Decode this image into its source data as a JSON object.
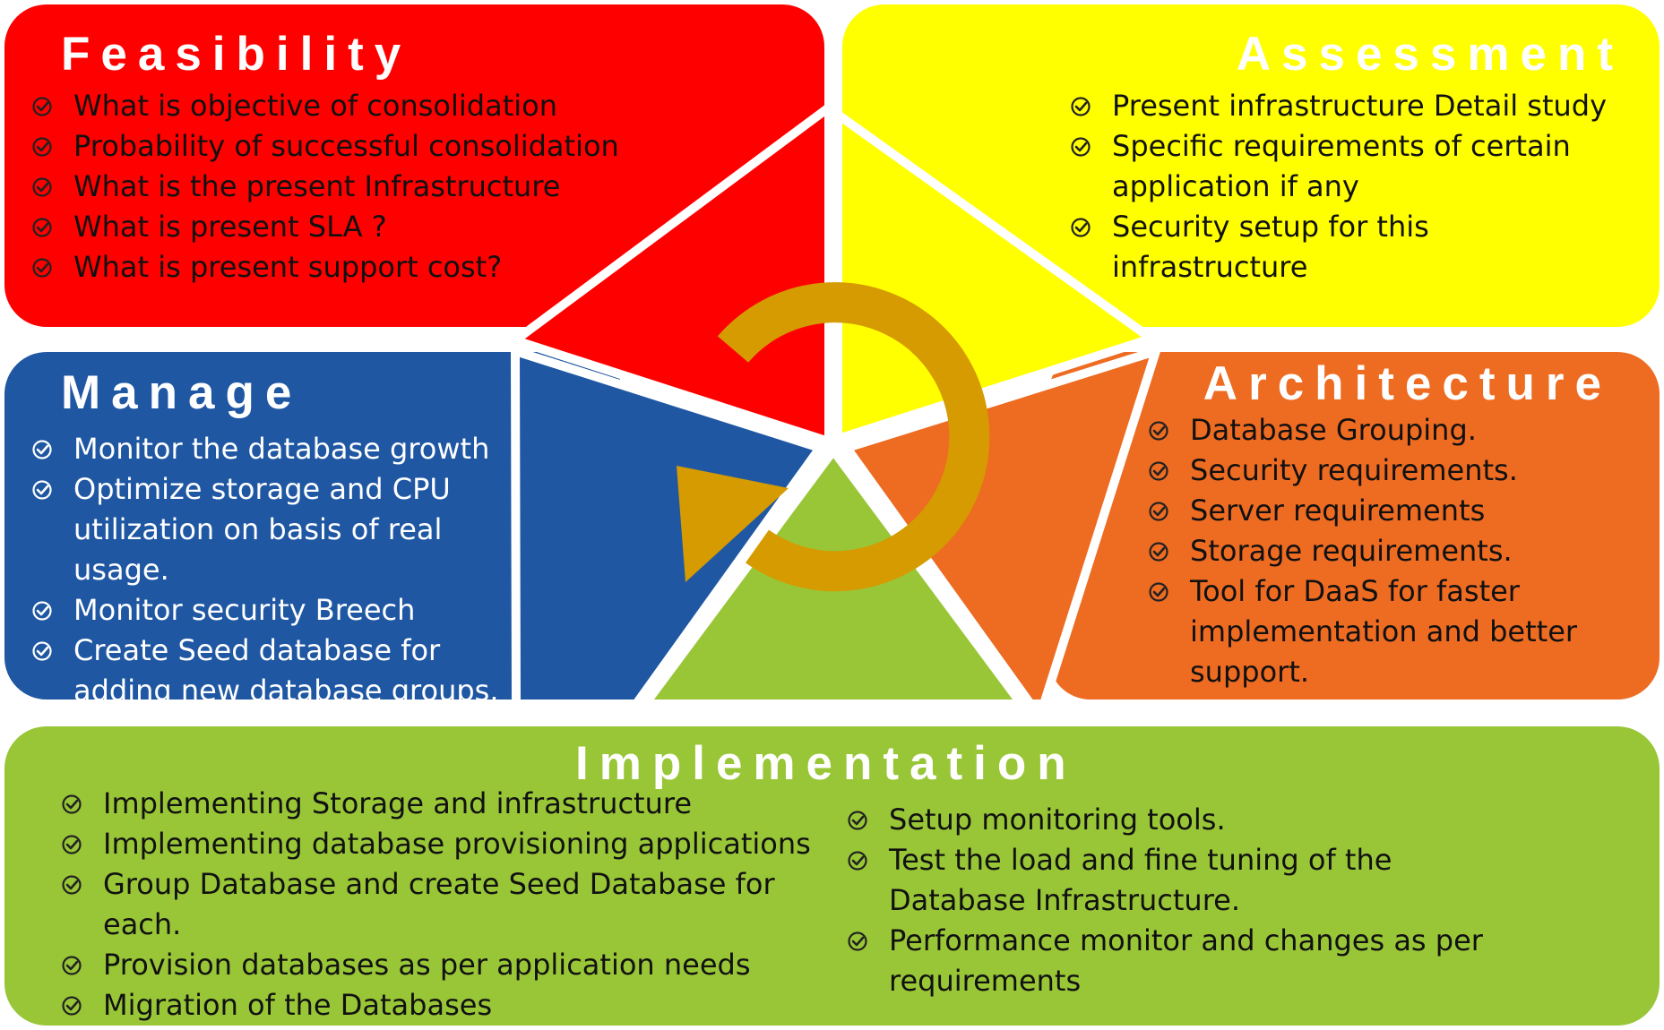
{
  "colors": {
    "feasibility": "#ff0000",
    "assessment": "#ffff00",
    "architecture": "#ee6b22",
    "manage": "#1f57a3",
    "implementation": "#99c637",
    "cycle_arrow": "#d59b00",
    "dividers": "#ffffff"
  },
  "icons": {
    "bullet": "check-circle-icon",
    "center": "circular-arrow-icon"
  },
  "feasibility": {
    "title": "Feasibility",
    "items": [
      "What is objective of consolidation",
      "Probability of successful consolidation",
      "What is the present Infrastructure",
      "What is present SLA ?",
      "What is present support cost?"
    ]
  },
  "assessment": {
    "title": "Assessment",
    "items": [
      "Present infrastructure Detail study",
      "Specific requirements of certain application if any",
      "Security setup for this infrastructure"
    ]
  },
  "manage": {
    "title": "Manage",
    "items": [
      "Monitor the database growth",
      "Optimize storage and CPU utilization on basis of real usage.",
      "Monitor security Breech",
      "Create Seed database for adding new database groups."
    ]
  },
  "architecture": {
    "title": "Architecture",
    "items": [
      "Database Grouping.",
      "Security requirements.",
      "Server requirements",
      "Storage requirements.",
      "Tool for DaaS for faster implementation and better support."
    ]
  },
  "implementation": {
    "title": "Implementation",
    "left_items": [
      "Implementing Storage and infrastructure",
      "Implementing database provisioning applications",
      "Group Database and create Seed Database for each.",
      "Provision databases as per application needs",
      "Migration of the Databases"
    ],
    "right_items": [
      "Setup monitoring tools.",
      "Test the load and fine tuning of the Database Infrastructure.",
      "Performance monitor and changes as per requirements"
    ]
  }
}
